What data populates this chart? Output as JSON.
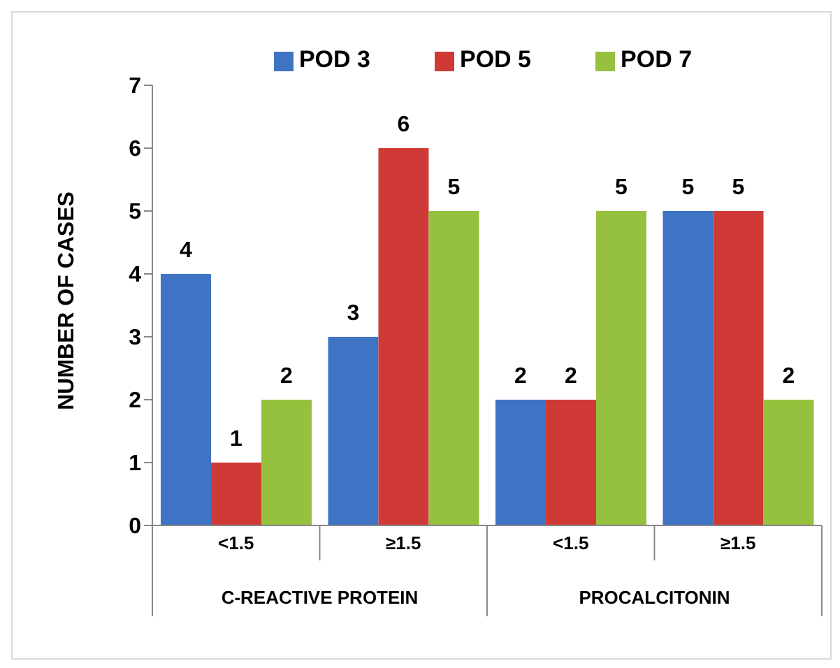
{
  "chart_data": {
    "type": "bar",
    "ylabel": "NUMBER OF CASES",
    "categories": [
      "<1.5",
      "≥1.5",
      "<1.5",
      "≥1.5"
    ],
    "series": [
      {
        "name": "POD 3",
        "color": "#3f74c4",
        "values": [
          4,
          3,
          2,
          5
        ]
      },
      {
        "name": "POD 5",
        "color": "#cf3a36",
        "values": [
          1,
          6,
          2,
          5
        ]
      },
      {
        "name": "POD 7",
        "color": "#96c13f",
        "values": [
          2,
          5,
          5,
          2
        ]
      }
    ],
    "annotations": [
      "C-REACTIVE PROTEIN",
      "PROCALCITONIN"
    ],
    "ylim": [
      0,
      7
    ],
    "yticks": [
      0,
      1,
      2,
      3,
      4,
      5,
      6,
      7
    ],
    "data_labels": true,
    "legend": "top",
    "grid": false
  }
}
